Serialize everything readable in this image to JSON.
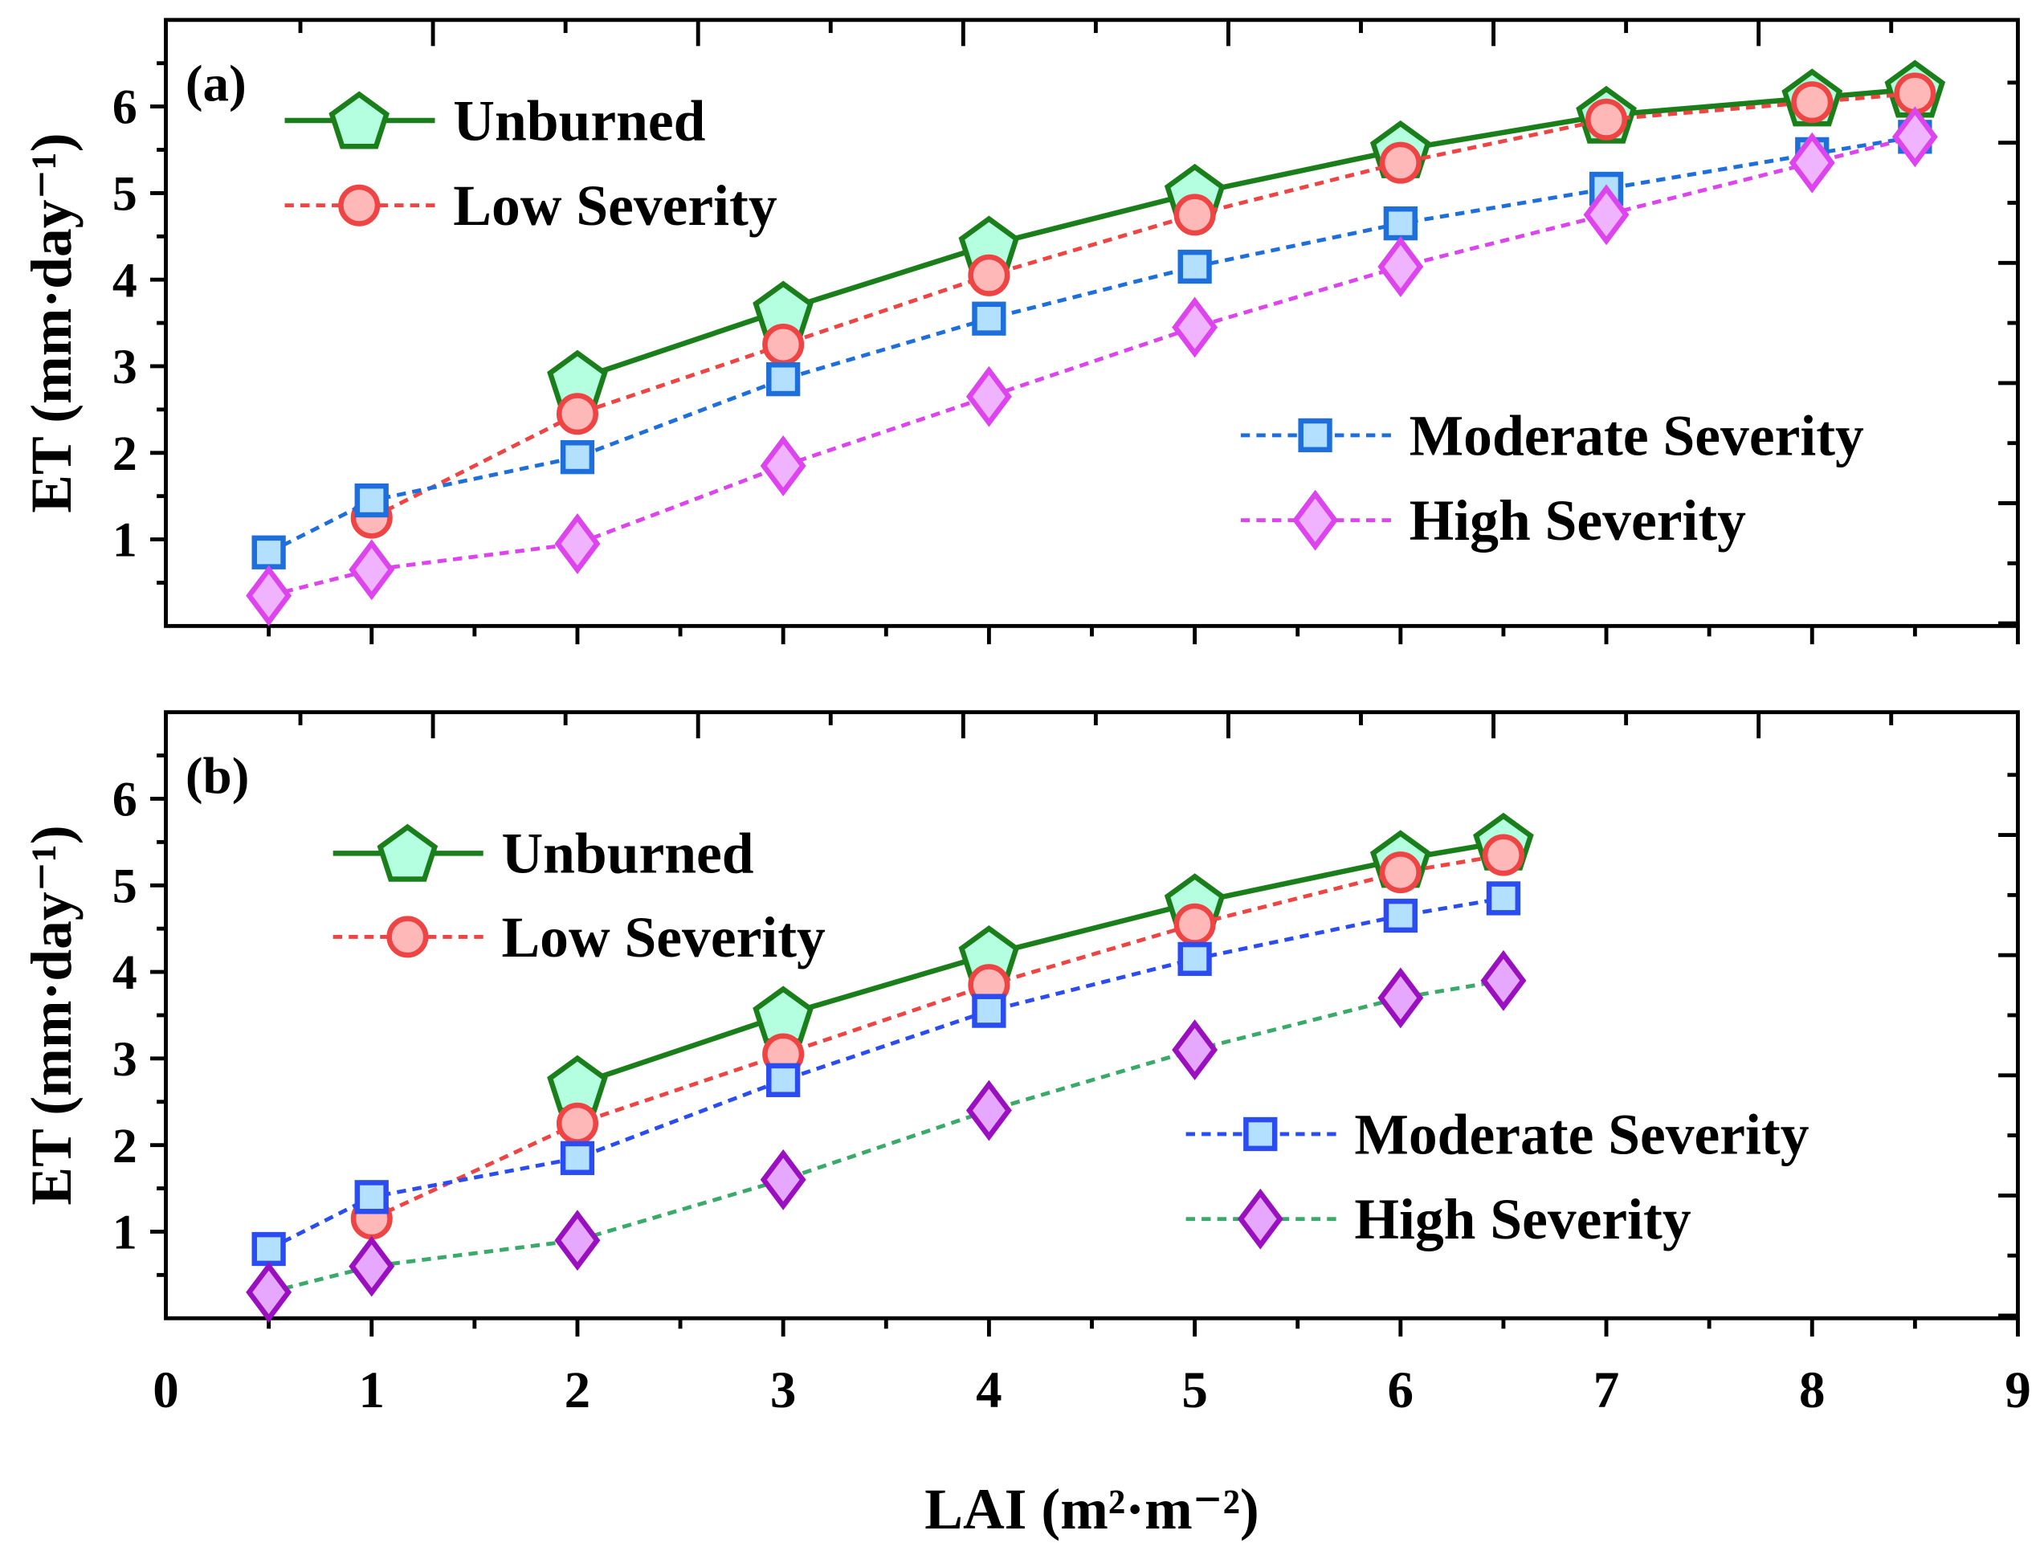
{
  "chart_data": [
    {
      "type": "line",
      "panel_label": "(a)",
      "ylabel": "ET (mm·day⁻¹)",
      "xlabel": "",
      "xlim": [
        0,
        9
      ],
      "ylim": [
        0,
        7
      ],
      "yticks": [
        "1",
        "2",
        "3",
        "4",
        "5",
        "6"
      ],
      "legend_groups": [
        "top-left",
        "center-right"
      ],
      "series": [
        {
          "name": "Unburned",
          "marker": "pentagon",
          "line": "solid",
          "color": "#1a7f1a",
          "fill": "#b3ffe0",
          "x": [
            2,
            3,
            4,
            5,
            6,
            7,
            8,
            8.5
          ],
          "y": [
            2.85,
            3.65,
            4.4,
            5.0,
            5.5,
            5.9,
            6.1,
            6.2
          ]
        },
        {
          "name": "Low Severity",
          "marker": "circle",
          "line": "dashed",
          "color": "#ee4444",
          "fill": "#ffb8b8",
          "x": [
            1,
            2,
            3,
            4,
            5,
            6,
            7,
            8,
            8.5
          ],
          "y": [
            1.25,
            2.45,
            3.25,
            4.05,
            4.75,
            5.35,
            5.85,
            6.05,
            6.15
          ]
        },
        {
          "name": "Moderate Severity",
          "marker": "square",
          "line": "dashed",
          "color": "#1e6fdc",
          "fill": "#b3e0ff",
          "x": [
            0.5,
            1,
            2,
            3,
            4,
            5,
            6,
            7,
            8,
            8.5
          ],
          "y": [
            0.85,
            1.45,
            1.95,
            2.85,
            3.55,
            4.15,
            4.65,
            5.05,
            5.45,
            5.65
          ]
        },
        {
          "name": "High Severity",
          "marker": "diamond",
          "line": "dashed",
          "color": "#dd44ee",
          "fill": "#f0b3ff",
          "x": [
            0.5,
            1,
            2,
            3,
            4,
            5,
            6,
            7,
            8,
            8.5
          ],
          "y": [
            0.35,
            0.65,
            0.95,
            1.85,
            2.65,
            3.45,
            4.15,
            4.75,
            5.35,
            5.65
          ]
        }
      ]
    },
    {
      "type": "line",
      "panel_label": "(b)",
      "ylabel": "ET (mm·day⁻¹)",
      "xlabel": "LAI (m²·m⁻²)",
      "xlim": [
        0,
        9
      ],
      "ylim": [
        0,
        7
      ],
      "xticks": [
        "0",
        "1",
        "2",
        "3",
        "4",
        "5",
        "6",
        "7",
        "8",
        "9"
      ],
      "yticks": [
        "1",
        "2",
        "3",
        "4",
        "5",
        "6"
      ],
      "legend_groups": [
        "top-left",
        "center-right"
      ],
      "series": [
        {
          "name": "Unburned",
          "marker": "pentagon",
          "line": "solid",
          "color": "#1a7f1a",
          "fill": "#b3ffe0",
          "x": [
            2,
            3,
            4,
            5,
            6,
            6.5
          ],
          "y": [
            2.7,
            3.5,
            4.2,
            4.8,
            5.3,
            5.5
          ]
        },
        {
          "name": "Low Severity",
          "marker": "circle",
          "line": "dashed",
          "color": "#ee4444",
          "fill": "#ffb8b8",
          "x": [
            1,
            2,
            3,
            4,
            5,
            6,
            6.5
          ],
          "y": [
            1.15,
            2.25,
            3.05,
            3.85,
            4.55,
            5.15,
            5.35
          ]
        },
        {
          "name": "Moderate Severity",
          "marker": "square",
          "line": "dashed",
          "color": "#2a4cf0",
          "fill": "#b3e0ff",
          "x": [
            0.5,
            1,
            2,
            3,
            4,
            5,
            6,
            6.5
          ],
          "y": [
            0.8,
            1.4,
            1.85,
            2.75,
            3.55,
            4.15,
            4.65,
            4.85
          ]
        },
        {
          "name": "High Severity",
          "marker": "diamond",
          "line": "dashed",
          "color": "#9a10c0",
          "fill": "#e6a8ff",
          "line_color": "#3aaa6a",
          "x": [
            0.5,
            1,
            2,
            3,
            4,
            5,
            6,
            6.5
          ],
          "y": [
            0.3,
            0.6,
            0.9,
            1.6,
            2.4,
            3.1,
            3.7,
            3.9
          ]
        }
      ]
    }
  ]
}
